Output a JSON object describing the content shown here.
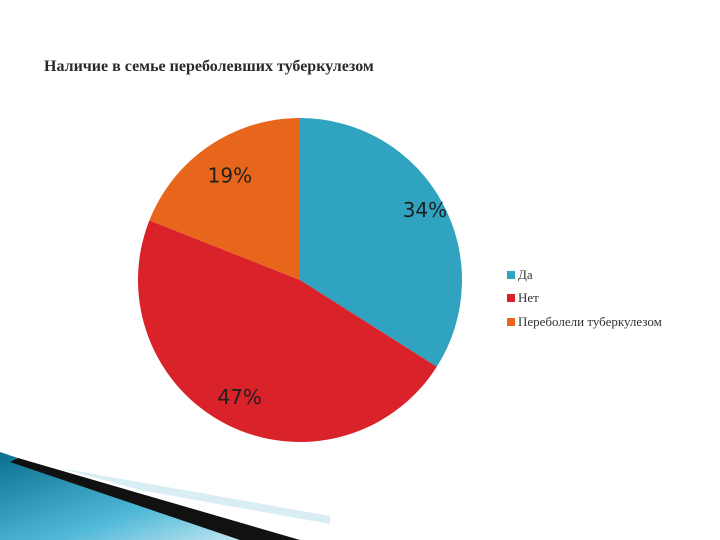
{
  "slide": {
    "title": "Наличие в семье переболевших туберкулезом"
  },
  "chart_data": {
    "type": "pie",
    "title": "Наличие в семье переболевших туберкулезом",
    "categories": [
      "Да",
      "Нет",
      "Переболели туберкулезом"
    ],
    "values": [
      34,
      47,
      19
    ],
    "data_labels": [
      "34%",
      "47%",
      "19%"
    ],
    "colors": [
      "#2FA3C0",
      "#D9222A",
      "#E8651C"
    ],
    "start_angle_deg": 0,
    "direction": "clockwise",
    "legend_position": "right"
  }
}
